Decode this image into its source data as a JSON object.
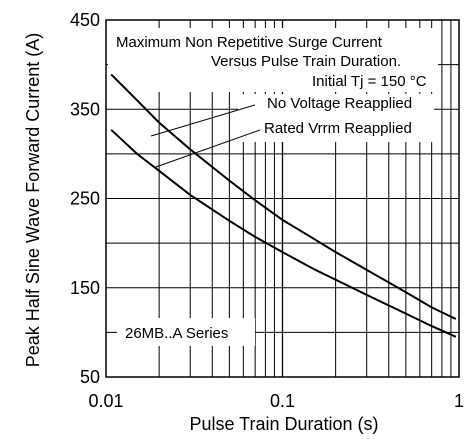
{
  "chart_data": {
    "type": "line",
    "title_lines": [
      "Maximum Non Repetitive Surge Current",
      "Versus Pulse Train Duration.",
      "Initial Tj = 150 °C"
    ],
    "xlabel": "Pulse Train Duration (s)",
    "ylabel": "Peak Half Sine Wave Forward Current (A)",
    "x_scale": "log",
    "xlim": [
      0.01,
      1
    ],
    "ylim": [
      50,
      450
    ],
    "x_ticks": [
      {
        "value": 0.01,
        "label": "0.01"
      },
      {
        "value": 0.1,
        "label": "0.1"
      },
      {
        "value": 1,
        "label": "1"
      }
    ],
    "y_ticks": [
      {
        "value": 50,
        "label": "50"
      },
      {
        "value": 150,
        "label": "150"
      },
      {
        "value": 250,
        "label": "250"
      },
      {
        "value": 350,
        "label": "350"
      },
      {
        "value": 450,
        "label": "450"
      }
    ],
    "y_grid": [
      50,
      100,
      150,
      200,
      250,
      300,
      350,
      400,
      450
    ],
    "grid": true,
    "annotation": "26MB..A Series",
    "series": [
      {
        "name": "No Voltage Reapplied",
        "points": [
          [
            0.0107,
            389
          ],
          [
            0.015,
            360
          ],
          [
            0.02,
            335
          ],
          [
            0.03,
            305
          ],
          [
            0.05,
            270
          ],
          [
            0.07,
            248
          ],
          [
            0.1,
            226
          ],
          [
            0.15,
            205
          ],
          [
            0.2,
            190
          ],
          [
            0.3,
            170
          ],
          [
            0.5,
            145
          ],
          [
            0.7,
            128
          ],
          [
            0.96,
            115
          ]
        ]
      },
      {
        "name": "Rated Vrrm Reapplied",
        "points": [
          [
            0.0107,
            327
          ],
          [
            0.015,
            300
          ],
          [
            0.02,
            281
          ],
          [
            0.03,
            254
          ],
          [
            0.05,
            225
          ],
          [
            0.07,
            207
          ],
          [
            0.1,
            190
          ],
          [
            0.15,
            171
          ],
          [
            0.2,
            159
          ],
          [
            0.3,
            142
          ],
          [
            0.5,
            121
          ],
          [
            0.7,
            107
          ],
          [
            0.96,
            95
          ]
        ]
      }
    ]
  }
}
